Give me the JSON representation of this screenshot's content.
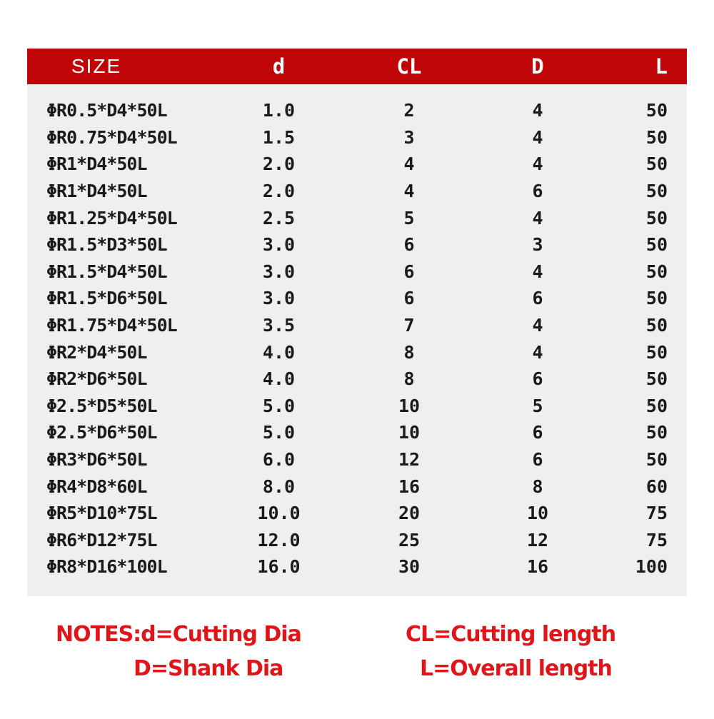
{
  "chart_data": {
    "type": "table",
    "columns": [
      "SIZE",
      "d",
      "CL",
      "D",
      "L"
    ],
    "rows": [
      [
        "ΦR0.5*D4*50L",
        "1.0",
        "2",
        "4",
        "50"
      ],
      [
        "ΦR0.75*D4*50L",
        "1.5",
        "3",
        "4",
        "50"
      ],
      [
        "ΦR1*D4*50L",
        "2.0",
        "4",
        "4",
        "50"
      ],
      [
        "ΦR1*D4*50L",
        "2.0",
        "4",
        "6",
        "50"
      ],
      [
        "ΦR1.25*D4*50L",
        "2.5",
        "5",
        "4",
        "50"
      ],
      [
        "ΦR1.5*D3*50L",
        "3.0",
        "6",
        "3",
        "50"
      ],
      [
        "ΦR1.5*D4*50L",
        "3.0",
        "6",
        "4",
        "50"
      ],
      [
        "ΦR1.5*D6*50L",
        "3.0",
        "6",
        "6",
        "50"
      ],
      [
        "ΦR1.75*D4*50L",
        "3.5",
        "7",
        "4",
        "50"
      ],
      [
        "ΦR2*D4*50L",
        "4.0",
        "8",
        "4",
        "50"
      ],
      [
        "ΦR2*D6*50L",
        "4.0",
        "8",
        "6",
        "50"
      ],
      [
        "Φ2.5*D5*50L",
        "5.0",
        "10",
        "5",
        "50"
      ],
      [
        "Φ2.5*D6*50L",
        "5.0",
        "10",
        "6",
        "50"
      ],
      [
        "ΦR3*D6*50L",
        "6.0",
        "12",
        "6",
        "50"
      ],
      [
        "ΦR4*D8*60L",
        "8.0",
        "16",
        "8",
        "60"
      ],
      [
        "ΦR5*D10*75L",
        "10.0",
        "20",
        "10",
        "75"
      ],
      [
        "ΦR6*D12*75L",
        "12.0",
        "25",
        "12",
        "75"
      ],
      [
        "ΦR8*D16*100L",
        "16.0",
        "30",
        "16",
        "100"
      ]
    ],
    "legend_position": "none",
    "grid": false
  },
  "notes": {
    "line1_left": "NOTES:d=Cutting Dia",
    "line1_right": "CL=Cutting length",
    "line2_left": "D=Shank Dia",
    "line2_right": "L=Overall length"
  },
  "colors": {
    "header_bg": "#c00509",
    "header_text": "#ffffff",
    "body_bg": "#efefef",
    "body_text": "#1b1b1b",
    "notes_red": "#e0151a",
    "page_bg": "#ffffff"
  }
}
